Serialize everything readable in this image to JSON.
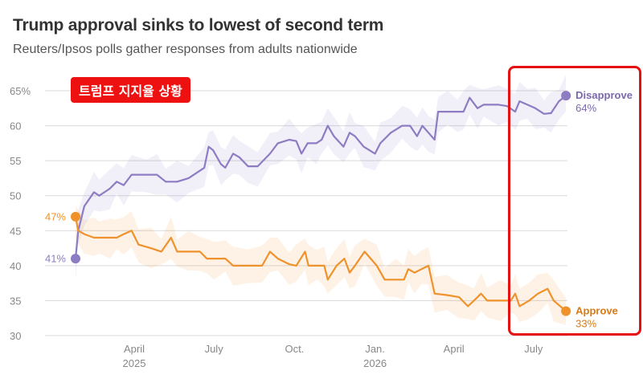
{
  "header": {
    "title": "Trump approval sinks to lowest of second term",
    "subtitle": "Reuters/Ipsos polls gather responses from adults nationwide"
  },
  "annotation": {
    "badge_text": "트럼프 지지율 상황"
  },
  "colors": {
    "disapprove": "#8e7cc3",
    "approve": "#f0922b",
    "disapprove_label": "#7b68b0",
    "approve_label": "#d97a14",
    "highlight": "#e51010",
    "grid": "#d9d9d9"
  },
  "chart_data": {
    "type": "line",
    "title": "Trump approval sinks to lowest of second term",
    "subtitle": "Reuters/Ipsos polls gather responses from adults nationwide",
    "ylim": [
      30,
      66
    ],
    "yticks": [
      30,
      35,
      40,
      45,
      50,
      55,
      60,
      65
    ],
    "ytick_labels": [
      "30",
      "35",
      "40",
      "45",
      "50",
      "55",
      "60",
      "65%"
    ],
    "x_ticks": [
      {
        "date": "2025-04-01",
        "label": "April",
        "year": "2025"
      },
      {
        "date": "2025-07-01",
        "label": "July",
        "year": ""
      },
      {
        "date": "2025-10-01",
        "label": "Oct.",
        "year": ""
      },
      {
        "date": "2026-01-01",
        "label": "Jan.",
        "year": "2026"
      },
      {
        "date": "2026-04-01",
        "label": "April",
        "year": ""
      },
      {
        "date": "2026-07-01",
        "label": "July",
        "year": ""
      }
    ],
    "xlim": [
      "2025-01-01",
      "2026-08-31"
    ],
    "grid": true,
    "series": [
      {
        "name": "Disapprove",
        "key": "disapprove",
        "start_label": "41%",
        "end_label": "64%",
        "points": [
          [
            "2025-01-24",
            41
          ],
          [
            "2025-01-27",
            45
          ],
          [
            "2025-02-03",
            48.5
          ],
          [
            "2025-02-14",
            50.5
          ],
          [
            "2025-02-20",
            50
          ],
          [
            "2025-03-04",
            51
          ],
          [
            "2025-03-12",
            52
          ],
          [
            "2025-03-20",
            51.5
          ],
          [
            "2025-03-29",
            53
          ],
          [
            "2025-04-15",
            53
          ],
          [
            "2025-04-27",
            53
          ],
          [
            "2025-05-07",
            52
          ],
          [
            "2025-05-20",
            52
          ],
          [
            "2025-06-02",
            52.5
          ],
          [
            "2025-06-20",
            54
          ],
          [
            "2025-06-25",
            57
          ],
          [
            "2025-06-30",
            56.5
          ],
          [
            "2025-07-09",
            54.5
          ],
          [
            "2025-07-14",
            54
          ],
          [
            "2025-07-23",
            56
          ],
          [
            "2025-07-30",
            55.5
          ],
          [
            "2025-08-09",
            54.2
          ],
          [
            "2025-08-20",
            54.2
          ],
          [
            "2025-09-03",
            56
          ],
          [
            "2025-09-12",
            57.5
          ],
          [
            "2025-09-25",
            58
          ],
          [
            "2025-10-03",
            57.8
          ],
          [
            "2025-10-09",
            56
          ],
          [
            "2025-10-16",
            57.5
          ],
          [
            "2025-10-26",
            57.5
          ],
          [
            "2025-11-01",
            58
          ],
          [
            "2025-11-08",
            60
          ],
          [
            "2025-11-15",
            58.5
          ],
          [
            "2025-11-26",
            57
          ],
          [
            "2025-12-03",
            59
          ],
          [
            "2025-12-09",
            58.5
          ],
          [
            "2025-12-19",
            57
          ],
          [
            "2026-01-01",
            56
          ],
          [
            "2026-01-07",
            57.5
          ],
          [
            "2026-01-19",
            59
          ],
          [
            "2026-02-01",
            60
          ],
          [
            "2026-02-10",
            60
          ],
          [
            "2026-02-18",
            58.5
          ],
          [
            "2026-02-24",
            60
          ],
          [
            "2026-03-03",
            59
          ],
          [
            "2026-03-10",
            58
          ],
          [
            "2026-03-14",
            62
          ],
          [
            "2026-03-25",
            62
          ],
          [
            "2026-04-05",
            62
          ],
          [
            "2026-04-12",
            62
          ],
          [
            "2026-04-19",
            64
          ],
          [
            "2026-04-28",
            62.5
          ],
          [
            "2026-05-05",
            63
          ],
          [
            "2026-05-22",
            63
          ],
          [
            "2026-06-01",
            62.8
          ],
          [
            "2026-06-10",
            62
          ],
          [
            "2026-06-15",
            63.5
          ],
          [
            "2026-06-24",
            63
          ],
          [
            "2026-07-03",
            62.5
          ],
          [
            "2026-07-13",
            61.7
          ],
          [
            "2026-07-21",
            61.8
          ],
          [
            "2026-07-30",
            63.5
          ],
          [
            "2026-08-07",
            64.3
          ]
        ]
      },
      {
        "name": "Approve",
        "key": "approve",
        "start_label": "47%",
        "end_label": "33%",
        "points": [
          [
            "2025-01-24",
            47
          ],
          [
            "2025-01-27",
            45
          ],
          [
            "2025-02-03",
            44.5
          ],
          [
            "2025-02-14",
            44
          ],
          [
            "2025-02-20",
            44
          ],
          [
            "2025-03-04",
            44
          ],
          [
            "2025-03-12",
            44
          ],
          [
            "2025-03-20",
            44.5
          ],
          [
            "2025-03-29",
            45
          ],
          [
            "2025-04-06",
            43
          ],
          [
            "2025-04-20",
            42.5
          ],
          [
            "2025-05-02",
            42
          ],
          [
            "2025-05-13",
            44
          ],
          [
            "2025-05-20",
            42
          ],
          [
            "2025-06-02",
            42
          ],
          [
            "2025-06-15",
            42
          ],
          [
            "2025-06-23",
            41
          ],
          [
            "2025-07-01",
            41
          ],
          [
            "2025-07-14",
            41
          ],
          [
            "2025-07-23",
            40
          ],
          [
            "2025-08-09",
            40
          ],
          [
            "2025-08-25",
            40
          ],
          [
            "2025-09-03",
            42
          ],
          [
            "2025-09-12",
            41
          ],
          [
            "2025-09-25",
            40.2
          ],
          [
            "2025-10-03",
            40
          ],
          [
            "2025-10-13",
            42
          ],
          [
            "2025-10-17",
            40
          ],
          [
            "2025-10-27",
            40
          ],
          [
            "2025-11-04",
            40
          ],
          [
            "2025-11-08",
            38
          ],
          [
            "2025-11-18",
            40
          ],
          [
            "2025-11-27",
            41
          ],
          [
            "2025-12-03",
            39
          ],
          [
            "2025-12-09",
            40
          ],
          [
            "2025-12-20",
            42
          ],
          [
            "2026-01-03",
            40
          ],
          [
            "2026-01-12",
            38
          ],
          [
            "2026-01-25",
            38
          ],
          [
            "2026-02-03",
            38
          ],
          [
            "2026-02-08",
            39.5
          ],
          [
            "2026-02-15",
            39
          ],
          [
            "2026-02-23",
            39.5
          ],
          [
            "2026-03-03",
            40
          ],
          [
            "2026-03-10",
            36
          ],
          [
            "2026-03-24",
            35.8
          ],
          [
            "2026-04-07",
            35.5
          ],
          [
            "2026-04-17",
            34.2
          ],
          [
            "2026-04-24",
            35
          ],
          [
            "2026-05-02",
            36
          ],
          [
            "2026-05-09",
            35
          ],
          [
            "2026-05-24",
            35
          ],
          [
            "2026-06-05",
            35
          ],
          [
            "2026-06-10",
            36
          ],
          [
            "2026-06-15",
            34.2
          ],
          [
            "2026-06-26",
            35
          ],
          [
            "2026-07-06",
            36
          ],
          [
            "2026-07-17",
            36.7
          ],
          [
            "2026-07-24",
            35
          ],
          [
            "2026-08-07",
            33.5
          ]
        ]
      }
    ],
    "highlight_region": [
      "2026-06-13",
      null
    ]
  }
}
